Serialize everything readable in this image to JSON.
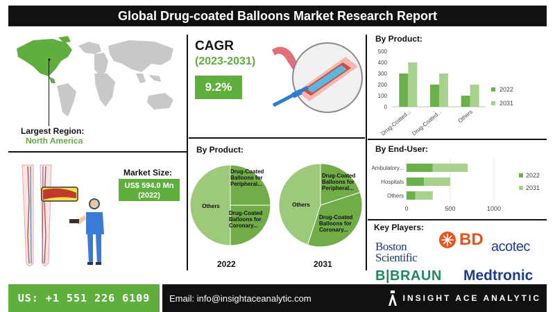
{
  "title": "Global Drug-coated Balloons Market Research Report",
  "region": {
    "label": "Largest Region:",
    "value": "North America"
  },
  "cagr": {
    "label": "CAGR",
    "period": "(2023-2031)",
    "value": "9.2%"
  },
  "market_size": {
    "label": "Market Size:",
    "value_line1": "US$ 594.0 Mn",
    "value_line2": "(2022)"
  },
  "pie_section": {
    "heading": "By Product:",
    "year1": "2022",
    "year2": "2031"
  },
  "bar_product_heading": "By Product:",
  "bar_enduser_heading": "By End-User:",
  "key_players": {
    "heading": "Key Players:",
    "logos": [
      "Boston Scientific",
      "BD",
      "acotec",
      "B|BRAUN",
      "Medtronic"
    ]
  },
  "footer": {
    "phone": "US: +1 551 226 6109",
    "email": "Email: info@insightaceanalytic.com",
    "brand": "INSIGHT ACE ANALYTIC"
  },
  "colors": {
    "green_dark": "#5fae3e",
    "green_mid": "#6ab04c",
    "green_light": "#a9d18e",
    "green_pie": "#70ad47",
    "green_pie_light": "#9cc97a"
  },
  "chart_data": [
    {
      "type": "bar",
      "title": "By Product:",
      "categories": [
        "Drug-Coated...",
        "Drug-Coated...",
        "Others"
      ],
      "series": [
        {
          "name": "2022",
          "values": [
            300,
            200,
            100
          ]
        },
        {
          "name": "2031",
          "values": [
            400,
            300,
            200
          ]
        }
      ],
      "ylim": [
        0,
        500
      ],
      "yticks": [
        0,
        100,
        200,
        300,
        400,
        500
      ],
      "grid": false,
      "legend": "right"
    },
    {
      "type": "bar",
      "orientation": "horizontal",
      "title": "By End-User:",
      "categories": [
        "Ambulatory...",
        "Hospitals",
        "Others"
      ],
      "series": [
        {
          "name": "2022",
          "values": [
            300,
            200,
            100
          ]
        },
        {
          "name": "2031",
          "values": [
            400,
            300,
            200
          ]
        }
      ],
      "xlim": [
        0,
        1000
      ],
      "xticks": [
        0,
        500,
        1000
      ],
      "stacked": true,
      "legend": "right"
    },
    {
      "type": "pie",
      "title": "2022",
      "labels": [
        "Drug-Coated Balloons for Peripheral...",
        "Drug-Coated Balloons for Coronary...",
        "Others"
      ],
      "values": [
        25,
        25,
        50
      ]
    },
    {
      "type": "pie",
      "title": "2031",
      "labels": [
        "Drug-Coated Balloons for Peripheral...",
        "Drug-Coated Balloons for Coronary...",
        "Others"
      ],
      "values": [
        20,
        35,
        45
      ]
    }
  ]
}
